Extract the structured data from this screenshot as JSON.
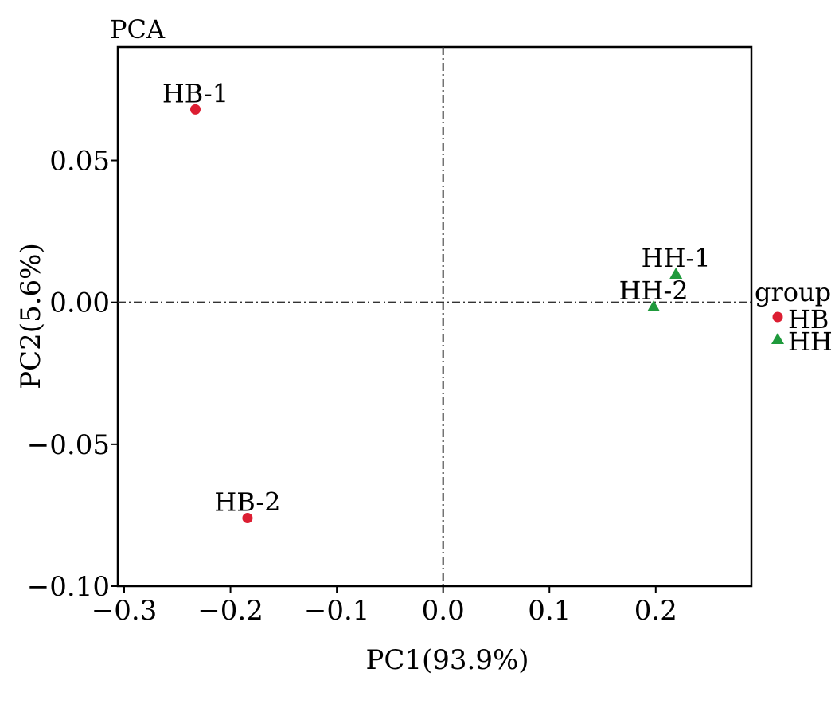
{
  "chart_data": {
    "type": "scatter",
    "title": "PCA",
    "xlabel": "PC1(93.9%)",
    "ylabel": "PC2(5.6%)",
    "xlim": [
      -0.306,
      0.29
    ],
    "ylim": [
      -0.1,
      0.09
    ],
    "xticks": [
      -0.3,
      -0.2,
      -0.1,
      0.0,
      0.1,
      0.2
    ],
    "xtick_labels": [
      "−0.3",
      "−0.2",
      "−0.1",
      "0.0",
      "0.1",
      "0.2"
    ],
    "yticks": [
      -0.1,
      -0.05,
      0.0,
      0.05
    ],
    "ytick_labels": [
      "−0.10",
      "−0.05",
      "0.00",
      "0.05"
    ],
    "reference_lines": {
      "x": 0.0,
      "y": 0.0,
      "style": "dash-dot"
    },
    "grid": false,
    "legend": {
      "title": "group",
      "placement": "right",
      "entries": [
        {
          "name": "HB",
          "marker": "circle",
          "color": "#dc1e32"
        },
        {
          "name": "HH",
          "marker": "triangle",
          "color": "#1f9a3c"
        }
      ]
    },
    "series": [
      {
        "name": "HB",
        "marker": "circle",
        "color": "#dc1e32",
        "points": [
          {
            "label": "HB-1",
            "x": -0.233,
            "y": 0.068
          },
          {
            "label": "HB-2",
            "x": -0.184,
            "y": -0.076
          }
        ]
      },
      {
        "name": "HH",
        "marker": "triangle",
        "color": "#1f9a3c",
        "points": [
          {
            "label": "HH-1",
            "x": 0.219,
            "y": 0.01
          },
          {
            "label": "HH-2",
            "x": 0.198,
            "y": -0.0015
          }
        ]
      }
    ]
  }
}
